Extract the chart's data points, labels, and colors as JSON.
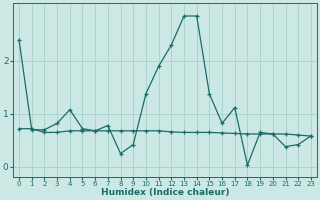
{
  "xlabel": "Humidex (Indice chaleur)",
  "ylabel": "",
  "bg_color": "#cce8e4",
  "line_color": "#1a6b6b",
  "grid_color": "#aad4ce",
  "xlim": [
    -0.5,
    23.5
  ],
  "ylim": [
    -0.2,
    3.1
  ],
  "yticks": [
    0,
    1,
    2
  ],
  "xticks": [
    0,
    1,
    2,
    3,
    4,
    5,
    6,
    7,
    8,
    9,
    10,
    11,
    12,
    13,
    14,
    15,
    16,
    17,
    18,
    19,
    20,
    21,
    22,
    23
  ],
  "series1_x": [
    0,
    1,
    2,
    3,
    4,
    5,
    6,
    7,
    8,
    9,
    10,
    11,
    12,
    13,
    14,
    15,
    16,
    17,
    18,
    19,
    20,
    21,
    22,
    23
  ],
  "series1_y": [
    2.4,
    0.7,
    0.7,
    0.82,
    1.08,
    0.72,
    0.68,
    0.78,
    0.25,
    0.42,
    1.38,
    1.9,
    2.3,
    2.85,
    2.85,
    1.38,
    0.82,
    1.12,
    0.03,
    0.65,
    0.62,
    0.38,
    0.42,
    0.58
  ],
  "series2_x": [
    0,
    1,
    2,
    3,
    4,
    5,
    6,
    7,
    8,
    9,
    10,
    11,
    12,
    13,
    14,
    15,
    16,
    17,
    18,
    19,
    20,
    21,
    22,
    23
  ],
  "series2_y": [
    0.72,
    0.72,
    0.65,
    0.65,
    0.68,
    0.68,
    0.68,
    0.68,
    0.68,
    0.68,
    0.68,
    0.68,
    0.66,
    0.65,
    0.65,
    0.65,
    0.64,
    0.63,
    0.62,
    0.62,
    0.62,
    0.62,
    0.6,
    0.58
  ]
}
